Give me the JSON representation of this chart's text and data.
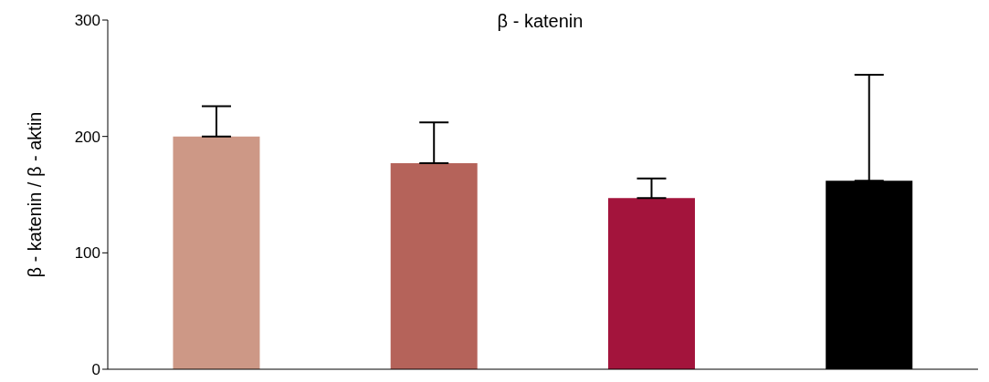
{
  "chart_data": {
    "type": "bar",
    "title": "β - katenin",
    "ylabel": "β - katenin / β - aktin",
    "categories": [
      null,
      null,
      null,
      null
    ],
    "values": [
      200,
      177,
      147,
      162
    ],
    "colors": [
      "#cd9886",
      "#b5635a",
      "#a3143c",
      "#000000"
    ],
    "errors": [
      [
        200,
        226
      ],
      [
        177,
        212
      ],
      [
        147,
        164
      ],
      [
        162,
        253
      ]
    ],
    "ylim": [
      0,
      300
    ],
    "yticks": [
      0,
      100,
      200,
      300
    ],
    "grid": false,
    "legend": false
  }
}
